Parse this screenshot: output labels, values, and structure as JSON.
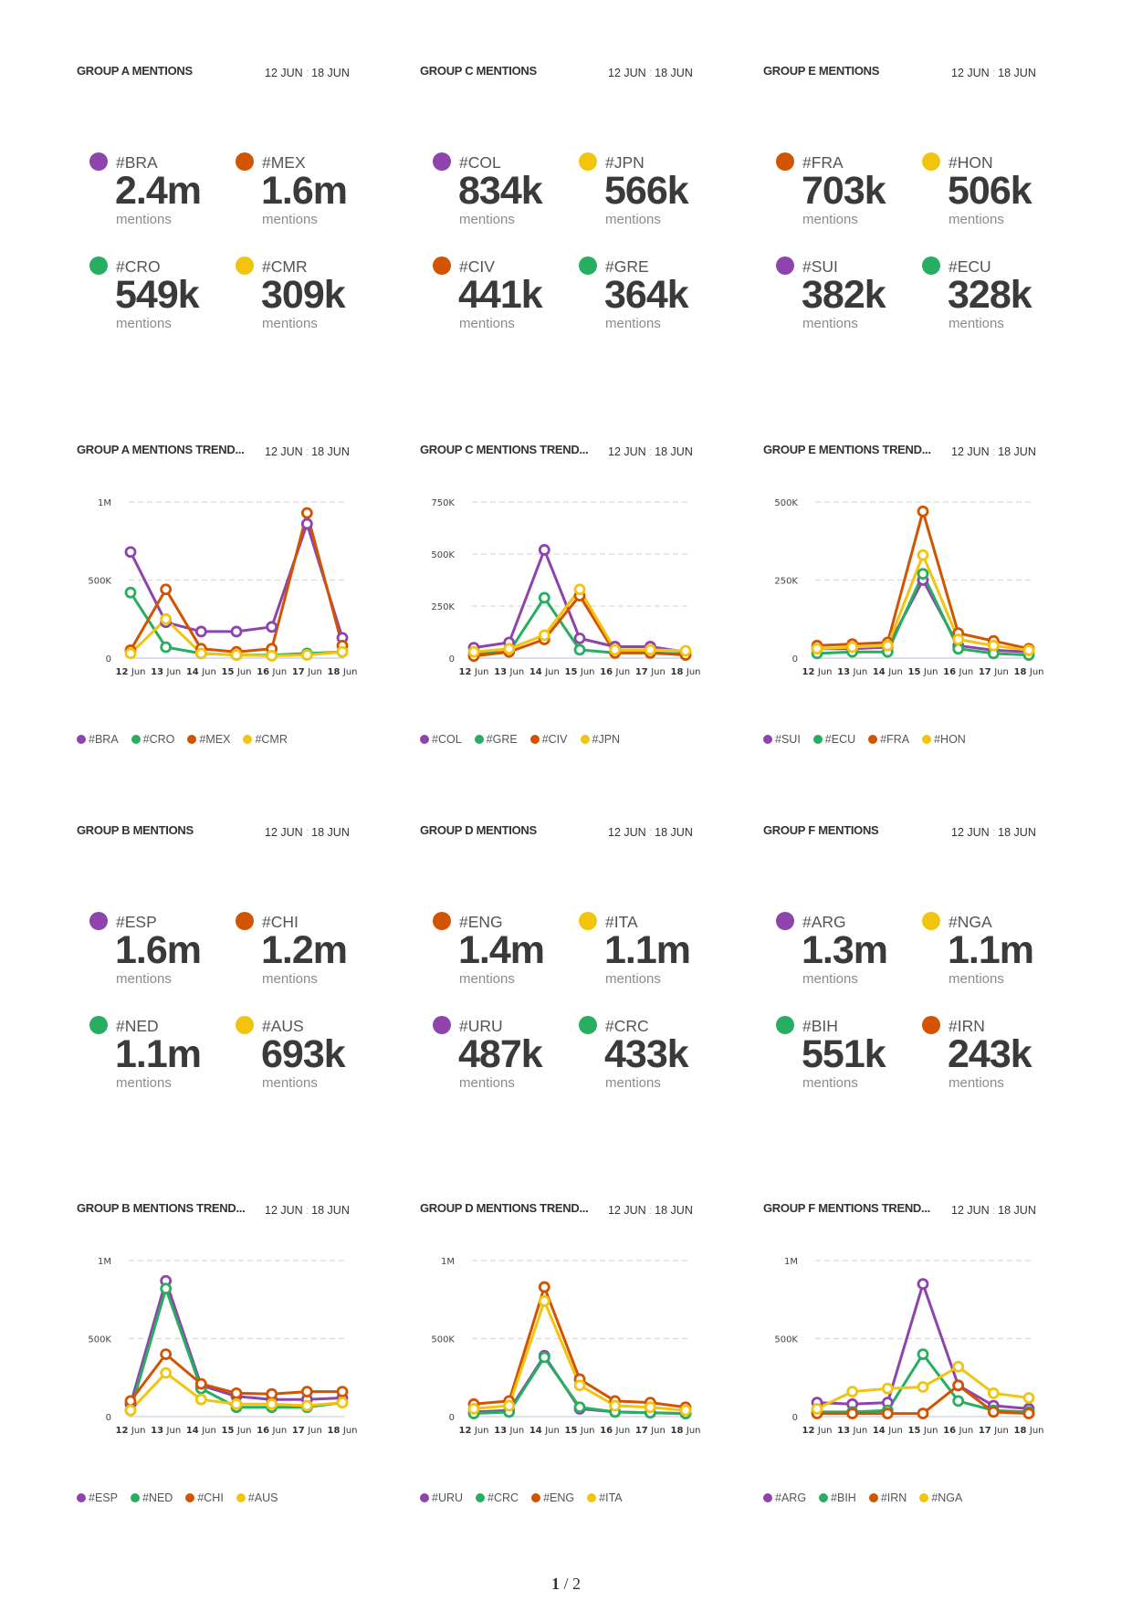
{
  "colors": {
    "purple": "#8e44ad",
    "green": "#27ae60",
    "orange": "#d35400",
    "yellow": "#f1c40f"
  },
  "mentions_unit": "mentions",
  "mention_panels": [
    {
      "title": "GROUP A MENTIONS",
      "date_from": "12 JUN",
      "date_to": "18 JUN",
      "stats": [
        {
          "tag": "#BRA",
          "value": "2.4m",
          "color": "purple"
        },
        {
          "tag": "#MEX",
          "value": "1.6m",
          "color": "orange"
        },
        {
          "tag": "#CRO",
          "value": "549k",
          "color": "green"
        },
        {
          "tag": "#CMR",
          "value": "309k",
          "color": "yellow"
        }
      ]
    },
    {
      "title": "GROUP C MENTIONS",
      "date_from": "12 JUN",
      "date_to": "18 JUN",
      "stats": [
        {
          "tag": "#COL",
          "value": "834k",
          "color": "purple"
        },
        {
          "tag": "#JPN",
          "value": "566k",
          "color": "yellow"
        },
        {
          "tag": "#CIV",
          "value": "441k",
          "color": "orange"
        },
        {
          "tag": "#GRE",
          "value": "364k",
          "color": "green"
        }
      ]
    },
    {
      "title": "GROUP E MENTIONS",
      "date_from": "12 JUN",
      "date_to": "18 JUN",
      "stats": [
        {
          "tag": "#FRA",
          "value": "703k",
          "color": "orange"
        },
        {
          "tag": "#HON",
          "value": "506k",
          "color": "yellow"
        },
        {
          "tag": "#SUI",
          "value": "382k",
          "color": "purple"
        },
        {
          "tag": "#ECU",
          "value": "328k",
          "color": "green"
        }
      ]
    },
    {
      "title": "GROUP B MENTIONS",
      "date_from": "12 JUN",
      "date_to": "18 JUN",
      "stats": [
        {
          "tag": "#ESP",
          "value": "1.6m",
          "color": "purple"
        },
        {
          "tag": "#CHI",
          "value": "1.2m",
          "color": "orange"
        },
        {
          "tag": "#NED",
          "value": "1.1m",
          "color": "green"
        },
        {
          "tag": "#AUS",
          "value": "693k",
          "color": "yellow"
        }
      ]
    },
    {
      "title": "GROUP D MENTIONS",
      "date_from": "12 JUN",
      "date_to": "18 JUN",
      "stats": [
        {
          "tag": "#ENG",
          "value": "1.4m",
          "color": "orange"
        },
        {
          "tag": "#ITA",
          "value": "1.1m",
          "color": "yellow"
        },
        {
          "tag": "#URU",
          "value": "487k",
          "color": "purple"
        },
        {
          "tag": "#CRC",
          "value": "433k",
          "color": "green"
        }
      ]
    },
    {
      "title": "GROUP F MENTIONS",
      "date_from": "12 JUN",
      "date_to": "18 JUN",
      "stats": [
        {
          "tag": "#ARG",
          "value": "1.3m",
          "color": "purple"
        },
        {
          "tag": "#NGA",
          "value": "1.1m",
          "color": "yellow"
        },
        {
          "tag": "#BIH",
          "value": "551k",
          "color": "green"
        },
        {
          "tag": "#IRN",
          "value": "243k",
          "color": "orange"
        }
      ]
    }
  ],
  "chart_data": [
    {
      "type": "line",
      "title": "GROUP A MENTIONS TREND...",
      "date_from": "12 JUN",
      "date_to": "18 JUN",
      "x_days": [
        "12",
        "13",
        "14",
        "15",
        "16",
        "17",
        "18"
      ],
      "x_suffix": "Jun",
      "yticks": [
        {
          "v": 0,
          "label": "0"
        },
        {
          "v": 500000,
          "label": "500K"
        },
        {
          "v": 1000000,
          "label": "1M"
        }
      ],
      "ylim": [
        0,
        1000000
      ],
      "series": [
        {
          "name": "#BRA",
          "color": "purple",
          "values": [
            680000,
            230000,
            170000,
            170000,
            200000,
            860000,
            130000
          ]
        },
        {
          "name": "#CRO",
          "color": "green",
          "values": [
            420000,
            70000,
            30000,
            20000,
            20000,
            30000,
            40000
          ]
        },
        {
          "name": "#MEX",
          "color": "orange",
          "values": [
            50000,
            440000,
            60000,
            40000,
            60000,
            930000,
            80000
          ]
        },
        {
          "name": "#CMR",
          "color": "yellow",
          "values": [
            30000,
            250000,
            30000,
            20000,
            15000,
            20000,
            40000
          ]
        }
      ]
    },
    {
      "type": "line",
      "title": "GROUP C MENTIONS TREND...",
      "date_from": "12 JUN",
      "date_to": "18 JUN",
      "x_days": [
        "12",
        "13",
        "14",
        "15",
        "16",
        "17",
        "18"
      ],
      "x_suffix": "Jun",
      "yticks": [
        {
          "v": 0,
          "label": "0"
        },
        {
          "v": 250000,
          "label": "250K"
        },
        {
          "v": 500000,
          "label": "500K"
        },
        {
          "v": 750000,
          "label": "750K"
        }
      ],
      "ylim": [
        0,
        750000
      ],
      "series": [
        {
          "name": "#COL",
          "color": "purple",
          "values": [
            50000,
            75000,
            520000,
            95000,
            55000,
            55000,
            30000
          ]
        },
        {
          "name": "#GRE",
          "color": "green",
          "values": [
            20000,
            30000,
            290000,
            40000,
            25000,
            25000,
            20000
          ]
        },
        {
          "name": "#CIV",
          "color": "orange",
          "values": [
            10000,
            30000,
            90000,
            300000,
            25000,
            25000,
            15000
          ]
        },
        {
          "name": "#JPN",
          "color": "yellow",
          "values": [
            30000,
            45000,
            110000,
            330000,
            40000,
            40000,
            35000
          ]
        }
      ]
    },
    {
      "type": "line",
      "title": "GROUP E MENTIONS TREND...",
      "date_from": "12 JUN",
      "date_to": "18 JUN",
      "x_days": [
        "12",
        "13",
        "14",
        "15",
        "16",
        "17",
        "18"
      ],
      "x_suffix": "Jun",
      "yticks": [
        {
          "v": 0,
          "label": "0"
        },
        {
          "v": 250000,
          "label": "250K"
        },
        {
          "v": 500000,
          "label": "500K"
        }
      ],
      "ylim": [
        0,
        500000
      ],
      "series": [
        {
          "name": "#SUI",
          "color": "purple",
          "values": [
            30000,
            30000,
            35000,
            250000,
            40000,
            25000,
            20000
          ]
        },
        {
          "name": "#ECU",
          "color": "green",
          "values": [
            15000,
            20000,
            20000,
            270000,
            30000,
            15000,
            10000
          ]
        },
        {
          "name": "#FRA",
          "color": "orange",
          "values": [
            40000,
            45000,
            50000,
            470000,
            80000,
            55000,
            30000
          ]
        },
        {
          "name": "#HON",
          "color": "yellow",
          "values": [
            30000,
            35000,
            40000,
            330000,
            60000,
            40000,
            25000
          ]
        }
      ]
    },
    {
      "type": "line",
      "title": "GROUP B MENTIONS TREND...",
      "date_from": "12 JUN",
      "date_to": "18 JUN",
      "x_days": [
        "12",
        "13",
        "14",
        "15",
        "16",
        "17",
        "18"
      ],
      "x_suffix": "Jun",
      "yticks": [
        {
          "v": 0,
          "label": "0"
        },
        {
          "v": 500000,
          "label": "500K"
        },
        {
          "v": 1000000,
          "label": "1M"
        }
      ],
      "ylim": [
        0,
        1000000
      ],
      "series": [
        {
          "name": "#ESP",
          "color": "purple",
          "values": [
            80000,
            870000,
            200000,
            130000,
            110000,
            110000,
            120000
          ]
        },
        {
          "name": "#NED",
          "color": "green",
          "values": [
            40000,
            820000,
            180000,
            60000,
            60000,
            60000,
            90000
          ]
        },
        {
          "name": "#CHI",
          "color": "orange",
          "values": [
            100000,
            400000,
            210000,
            150000,
            145000,
            160000,
            160000
          ]
        },
        {
          "name": "#AUS",
          "color": "yellow",
          "values": [
            40000,
            280000,
            110000,
            80000,
            80000,
            70000,
            90000
          ]
        }
      ]
    },
    {
      "type": "line",
      "title": "GROUP D MENTIONS TREND...",
      "date_from": "12 JUN",
      "date_to": "18 JUN",
      "x_days": [
        "12",
        "13",
        "14",
        "15",
        "16",
        "17",
        "18"
      ],
      "x_suffix": "Jun",
      "yticks": [
        {
          "v": 0,
          "label": "0"
        },
        {
          "v": 500000,
          "label": "500K"
        },
        {
          "v": 1000000,
          "label": "1M"
        }
      ],
      "ylim": [
        0,
        1000000
      ],
      "series": [
        {
          "name": "#URU",
          "color": "purple",
          "values": [
            30000,
            40000,
            390000,
            50000,
            30000,
            25000,
            20000
          ]
        },
        {
          "name": "#CRC",
          "color": "green",
          "values": [
            20000,
            30000,
            380000,
            60000,
            30000,
            25000,
            20000
          ]
        },
        {
          "name": "#ENG",
          "color": "orange",
          "values": [
            80000,
            100000,
            830000,
            240000,
            100000,
            90000,
            60000
          ]
        },
        {
          "name": "#ITA",
          "color": "yellow",
          "values": [
            50000,
            70000,
            740000,
            200000,
            70000,
            60000,
            40000
          ]
        }
      ]
    },
    {
      "type": "line",
      "title": "GROUP F MENTIONS TREND...",
      "date_from": "12 JUN",
      "date_to": "18 JUN",
      "x_days": [
        "12",
        "13",
        "14",
        "15",
        "16",
        "17",
        "18"
      ],
      "x_suffix": "Jun",
      "yticks": [
        {
          "v": 0,
          "label": "0"
        },
        {
          "v": 500000,
          "label": "500K"
        },
        {
          "v": 1000000,
          "label": "1M"
        }
      ],
      "ylim": [
        0,
        1000000
      ],
      "series": [
        {
          "name": "#ARG",
          "color": "purple",
          "values": [
            90000,
            80000,
            90000,
            850000,
            200000,
            70000,
            50000
          ]
        },
        {
          "name": "#BIH",
          "color": "green",
          "values": [
            30000,
            30000,
            40000,
            400000,
            100000,
            40000,
            30000
          ]
        },
        {
          "name": "#IRN",
          "color": "orange",
          "values": [
            20000,
            20000,
            20000,
            20000,
            200000,
            30000,
            20000
          ]
        },
        {
          "name": "#NGA",
          "color": "yellow",
          "values": [
            50000,
            160000,
            180000,
            190000,
            320000,
            150000,
            120000
          ]
        }
      ]
    }
  ],
  "pager": {
    "current": "1",
    "total": "/ 2"
  }
}
